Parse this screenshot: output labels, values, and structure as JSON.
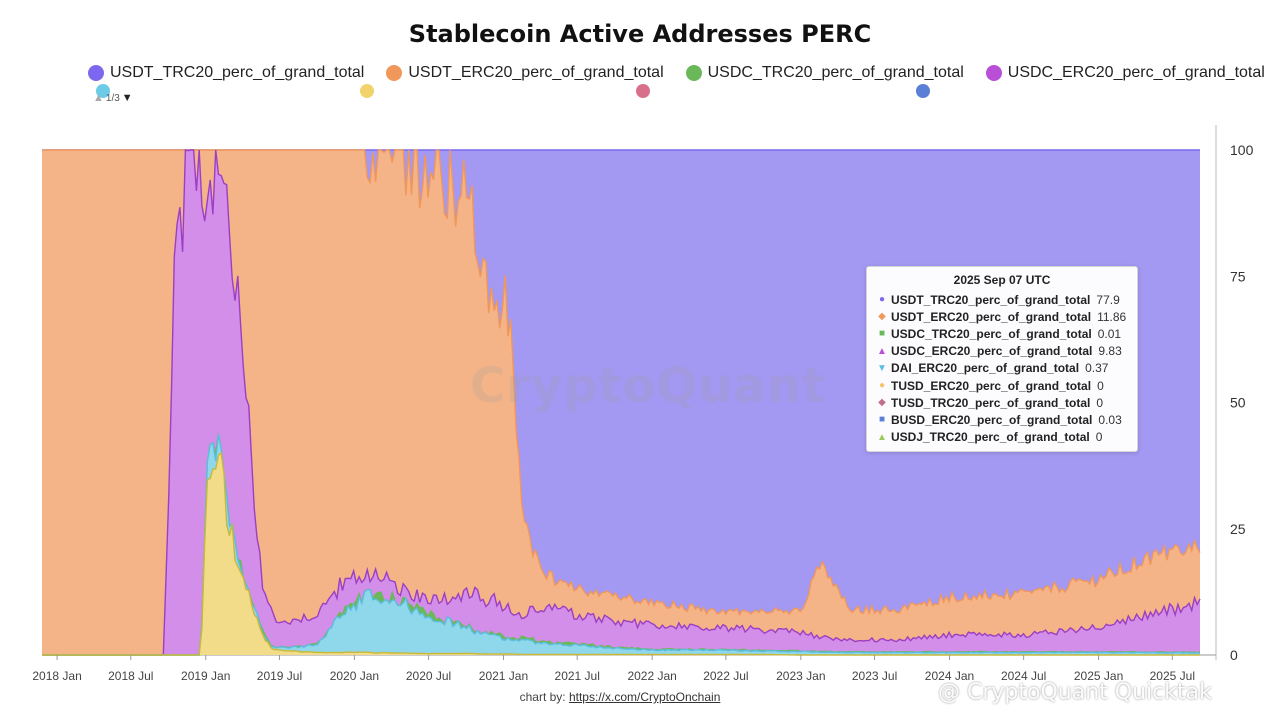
{
  "chart_data": {
    "type": "area",
    "stacked": true,
    "title": "Stablecoin Active Addresses PERC",
    "y_ticks": [
      "0",
      "25",
      "50",
      "75",
      "100"
    ],
    "ylim": [
      0,
      100
    ],
    "x_ticks": [
      "2018 Jan",
      "2018 Jul",
      "2019 Jan",
      "2019 Jul",
      "2020 Jan",
      "2020 Jul",
      "2021 Jan",
      "2021 Jul",
      "2022 Jan",
      "2022 Jul",
      "2023 Jan",
      "2023 Jul",
      "2024 Jan",
      "2024 Jul",
      "2025 Jan",
      "2025 Jul"
    ],
    "legend_page": "1/3",
    "legend_visible": [
      {
        "name": "USDT_TRC20_perc_of_grand_total",
        "color": "#7b68ee"
      },
      {
        "name": "USDT_ERC20_perc_of_grand_total",
        "color": "#f0975a"
      },
      {
        "name": "USDC_TRC20_perc_of_grand_total",
        "color": "#6ab85a"
      },
      {
        "name": "USDC_ERC20_perc_of_grand_total",
        "color": "#b84fd6"
      }
    ],
    "legend_peek_colors": [
      "#6ccbe6",
      "#f2d36b",
      "#d9708a",
      "#5a7fd6"
    ],
    "series": [
      {
        "name": "USDT_ERC20_perc_of_grand_total",
        "color": "#f0975a",
        "fill": "#f5b488"
      },
      {
        "name": "USDT_TRC20_perc_of_grand_total",
        "color": "#7b68ee",
        "fill": "#a398f2"
      },
      {
        "name": "USDC_TRC20_perc_of_grand_total",
        "color": "#6ab85a",
        "fill": "#6ab85a"
      },
      {
        "name": "USDC_ERC20_perc_of_grand_total",
        "color": "#9b3fc4",
        "fill": "#d28ee8"
      },
      {
        "name": "DAI_ERC20_perc_of_grand_total",
        "color": "#5bbde0",
        "fill": "#8fd7ea"
      },
      {
        "name": "TUSD_ERC20_perc_of_grand_total",
        "color": "#c9b93a",
        "fill": "#f2dc8a"
      }
    ],
    "stack_keypoints": {
      "x": [
        "2017-11-25",
        "2018-09-10",
        "2018-09-20",
        "2018-10-01",
        "2018-10-20",
        "2018-11-20",
        "2018-12-20",
        "2019-01-05",
        "2019-02-01",
        "2019-03-01",
        "2019-04-01",
        "2019-05-01",
        "2019-05-20",
        "2019-06-05",
        "2019-06-15",
        "2019-07-01",
        "2019-08-01",
        "2019-10-01",
        "2019-12-01",
        "2020-02-01",
        "2020-04-01",
        "2020-06-01",
        "2020-08-01",
        "2020-09-15",
        "2020-10-15",
        "2020-11-15",
        "2020-12-15",
        "2021-01-15",
        "2021-02-15",
        "2021-03-15",
        "2021-05-01",
        "2021-07-01",
        "2021-09-01",
        "2022-01-01",
        "2022-05-01",
        "2022-10-01",
        "2023-01-01",
        "2023-02-15",
        "2023-05-01",
        "2023-09-01",
        "2024-01-01",
        "2024-07-01",
        "2025-01-01",
        "2025-05-01",
        "2025-09-07"
      ],
      "TUSD_ERC20": [
        0,
        0,
        0,
        0,
        0,
        0,
        0,
        35,
        40,
        25,
        15,
        8,
        4,
        2,
        1,
        1,
        0.8,
        0.5,
        0.5,
        0.5,
        0.4,
        0.3,
        0.3,
        0.3,
        0.3,
        0.2,
        0.2,
        0.2,
        0.1,
        0.1,
        0.1,
        0.1,
        0.1,
        0.1,
        0.1,
        0.1,
        0,
        0,
        0,
        0,
        0,
        0,
        0,
        0,
        0
      ],
      "DAI_ERC20": [
        0,
        0,
        0,
        0,
        0,
        0,
        0,
        36,
        41,
        26,
        15.5,
        8.5,
        4.5,
        2.5,
        1.5,
        1.5,
        1.5,
        2,
        8,
        12,
        11,
        9,
        7,
        6,
        5,
        4,
        4,
        3,
        3,
        2.5,
        2,
        2,
        1.5,
        1,
        1,
        0.8,
        0.7,
        0.6,
        0.5,
        0.5,
        0.5,
        0.5,
        0.5,
        0.5,
        0.4
      ],
      "USDC_TRC20": [
        0,
        0,
        0,
        0,
        0,
        0,
        0,
        36,
        41,
        26,
        15.5,
        8.5,
        4.5,
        2.5,
        1.5,
        1.5,
        1.5,
        2,
        8,
        12,
        11,
        9,
        7.2,
        6.2,
        5.2,
        4.3,
        4.3,
        3.3,
        3.4,
        3,
        2.3,
        2.2,
        1.7,
        1.1,
        1.1,
        0.9,
        0.8,
        0.7,
        0.6,
        0.6,
        0.6,
        0.6,
        0.6,
        0.6,
        0.5
      ],
      "USDC_ERC20": [
        0,
        0,
        0,
        30,
        80,
        95,
        97,
        96,
        97,
        85,
        60,
        30,
        15,
        10,
        8,
        6,
        7,
        8,
        14,
        16,
        14,
        12,
        11,
        11,
        13,
        10,
        11,
        9,
        8,
        9,
        9,
        8,
        7,
        6,
        5.5,
        5,
        4.5,
        3.5,
        3,
        3,
        4,
        4,
        5.5,
        8,
        10.3
      ],
      "USDT_ERC20": [
        100,
        100,
        100,
        100,
        100,
        100,
        100,
        100,
        100,
        100,
        100,
        100,
        100,
        100,
        100,
        100,
        100,
        100,
        100,
        100,
        98,
        97,
        95,
        92,
        88,
        75,
        72,
        68,
        28,
        20,
        15,
        13,
        12,
        10.5,
        9,
        8.5,
        9,
        18,
        9,
        9,
        11.5,
        12,
        15,
        19,
        22
      ],
      "USDT_TRC20": [
        100,
        100,
        100,
        100,
        100,
        100,
        100,
        100,
        100,
        100,
        100,
        100,
        100,
        100,
        100,
        100,
        100,
        100,
        100,
        100,
        100,
        100,
        100,
        100,
        100,
        100,
        100,
        100,
        100,
        100,
        100,
        100,
        100,
        100,
        100,
        100,
        100,
        100,
        100,
        100,
        100,
        100,
        100,
        100,
        100
      ]
    },
    "tooltip": {
      "title": "2025 Sep 07 UTC",
      "rows": [
        {
          "name": "USDT_TRC20_perc_of_grand_total",
          "value": "77.9",
          "marker": "●",
          "color": "#7b68ee"
        },
        {
          "name": "USDT_ERC20_perc_of_grand_total",
          "value": "11.86",
          "marker": "◆",
          "color": "#f0975a"
        },
        {
          "name": "USDC_TRC20_perc_of_grand_total",
          "value": "0.01",
          "marker": "■",
          "color": "#6ab85a"
        },
        {
          "name": "USDC_ERC20_perc_of_grand_total",
          "value": "9.83",
          "marker": "▲",
          "color": "#b84fd6"
        },
        {
          "name": "DAI_ERC20_perc_of_grand_total",
          "value": "0.37",
          "marker": "▼",
          "color": "#5bbde0"
        },
        {
          "name": "TUSD_ERC20_perc_of_grand_total",
          "value": "0",
          "marker": "●",
          "color": "#f2c46b"
        },
        {
          "name": "TUSD_TRC20_perc_of_grand_total",
          "value": "0",
          "marker": "◆",
          "color": "#c0708a"
        },
        {
          "name": "BUSD_ERC20_perc_of_grand_total",
          "value": "0.03",
          "marker": "■",
          "color": "#5a7fd6"
        },
        {
          "name": "USDJ_TRC20_perc_of_grand_total",
          "value": "0",
          "marker": "▲",
          "color": "#9bc95a"
        }
      ]
    }
  },
  "credit": {
    "prefix": "chart by: ",
    "link": "https://x.com/CryptoOnchain"
  },
  "watermark": {
    "center": "CryptoQuant",
    "corner": "@ CryptoQuant Quicktak"
  }
}
